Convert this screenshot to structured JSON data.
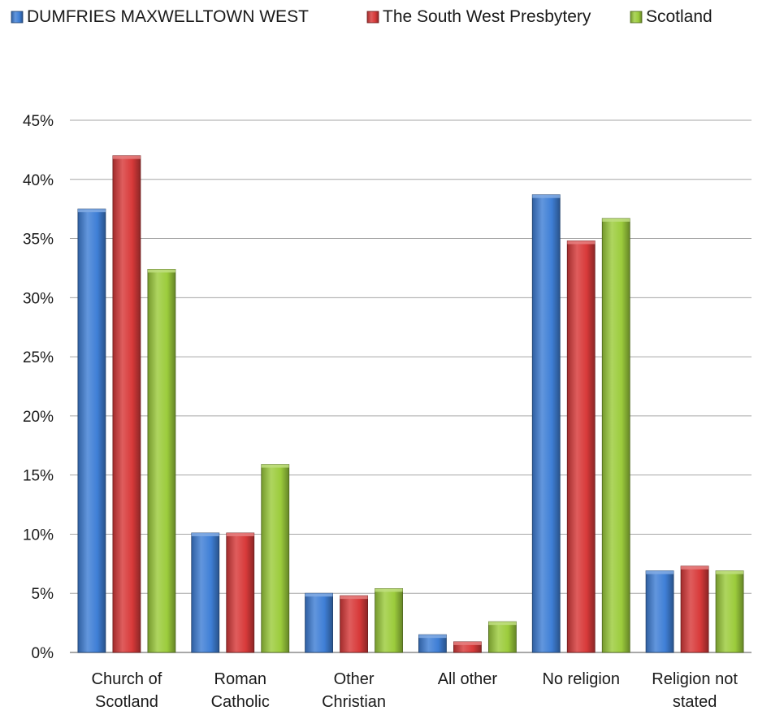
{
  "chart_data": {
    "type": "bar",
    "title": "",
    "xlabel": "",
    "ylabel": "",
    "ylim": [
      0,
      45
    ],
    "y_ticks": [
      "0%",
      "5%",
      "10%",
      "15%",
      "20%",
      "25%",
      "30%",
      "35%",
      "40%",
      "45%"
    ],
    "grid": true,
    "legend_position": "top",
    "categories": [
      [
        "Church of",
        "Scotland"
      ],
      [
        "Roman",
        "Catholic"
      ],
      [
        "Other",
        "Christian"
      ],
      [
        "All other"
      ],
      [
        "No religion"
      ],
      [
        "Religion not",
        "stated"
      ]
    ],
    "series": [
      {
        "name": "DUMFRIES MAXWELLTOWN WEST",
        "color": "#3f7fd6",
        "values": [
          37.5,
          10.1,
          5.0,
          1.5,
          38.7,
          6.9
        ]
      },
      {
        "name": "The South West Presbytery",
        "color": "#d83a3a",
        "values": [
          42.0,
          10.1,
          4.8,
          0.9,
          34.8,
          7.3
        ]
      },
      {
        "name": "Scotland",
        "color": "#9ccc3c",
        "values": [
          32.4,
          15.9,
          5.4,
          2.6,
          36.7,
          6.9
        ]
      }
    ]
  }
}
